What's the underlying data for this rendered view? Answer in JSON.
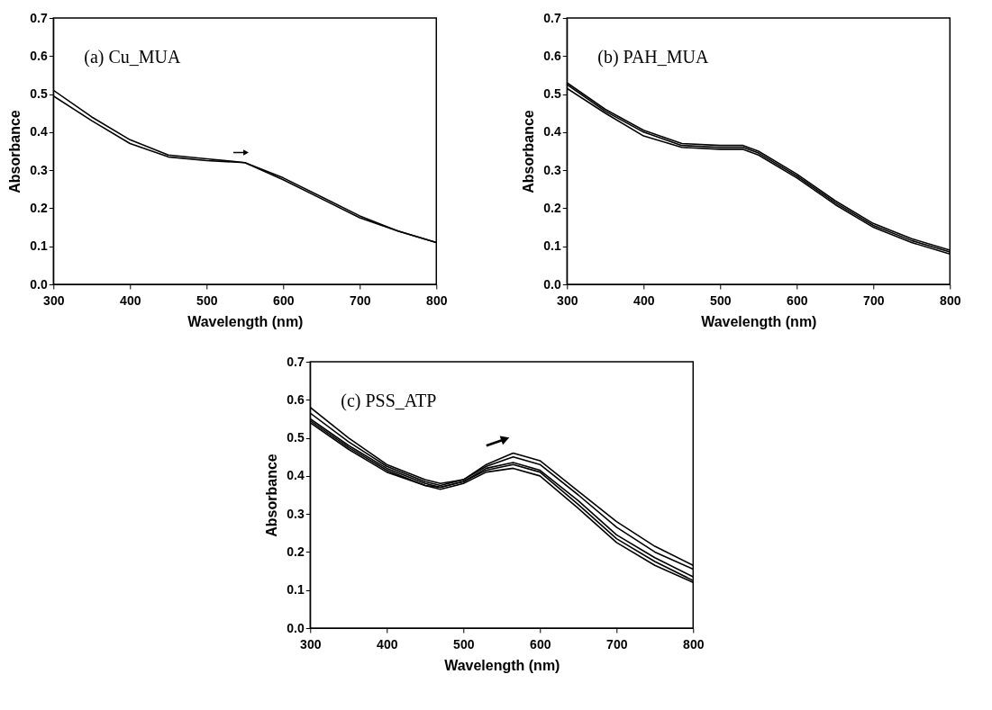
{
  "chart_data": [
    {
      "type": "line",
      "xlabel": "Wavelength (nm)",
      "ylabel": "Absorbance",
      "annotations": [
        "(a) Cu_MUA"
      ],
      "xlim": [
        300,
        800
      ],
      "ylim": [
        0,
        0.7
      ],
      "xticks": [
        300,
        400,
        500,
        600,
        700,
        800
      ],
      "yticks": [
        {
          "value": 0,
          "label": "0.0"
        },
        {
          "value": 0.1,
          "label": "0.1"
        },
        {
          "value": 0.2,
          "label": "0.2"
        },
        {
          "value": 0.3,
          "label": "0.3"
        },
        {
          "value": 0.4,
          "label": "0.4"
        },
        {
          "value": 0.5,
          "label": "0.5"
        },
        {
          "value": 0.6,
          "label": "0.6"
        },
        {
          "value": 0.7,
          "label": "0.7"
        }
      ],
      "x": [
        300,
        350,
        400,
        450,
        500,
        550,
        600,
        650,
        700,
        750,
        800
      ],
      "series": [
        {
          "color": "#000000",
          "values": [
            0.51,
            0.44,
            0.38,
            0.34,
            0.33,
            0.32,
            0.28,
            0.23,
            0.18,
            0.14,
            0.11
          ]
        },
        {
          "color": "#000000",
          "values": [
            0.495,
            0.43,
            0.37,
            0.335,
            0.325,
            0.32,
            0.275,
            0.225,
            0.175,
            0.14,
            0.11
          ]
        }
      ]
    },
    {
      "type": "line",
      "xlabel": "Wavelength (nm)",
      "ylabel": "Absorbance",
      "annotations": [
        "(b) PAH_MUA"
      ],
      "xlim": [
        300,
        800
      ],
      "ylim": [
        0,
        0.7
      ],
      "xticks": [
        300,
        400,
        500,
        600,
        700,
        800
      ],
      "yticks": [
        {
          "value": 0,
          "label": "0.0"
        },
        {
          "value": 0.1,
          "label": "0.1"
        },
        {
          "value": 0.2,
          "label": "0.2"
        },
        {
          "value": 0.3,
          "label": "0.3"
        },
        {
          "value": 0.4,
          "label": "0.4"
        },
        {
          "value": 0.5,
          "label": "0.5"
        },
        {
          "value": 0.6,
          "label": "0.6"
        },
        {
          "value": 0.7,
          "label": "0.7"
        }
      ],
      "x": [
        300,
        350,
        400,
        450,
        500,
        530,
        550,
        600,
        650,
        700,
        750,
        800
      ],
      "series": [
        {
          "color": "#000000",
          "values": [
            0.53,
            0.46,
            0.405,
            0.37,
            0.365,
            0.365,
            0.35,
            0.29,
            0.22,
            0.16,
            0.12,
            0.09
          ]
        },
        {
          "color": "#000000",
          "values": [
            0.525,
            0.455,
            0.4,
            0.365,
            0.36,
            0.36,
            0.345,
            0.285,
            0.215,
            0.155,
            0.115,
            0.085
          ]
        },
        {
          "color": "#000000",
          "values": [
            0.515,
            0.45,
            0.39,
            0.36,
            0.355,
            0.355,
            0.34,
            0.28,
            0.21,
            0.15,
            0.11,
            0.08
          ]
        }
      ]
    },
    {
      "type": "line",
      "xlabel": "Wavelength (nm)",
      "ylabel": "Absorbance",
      "annotations": [
        "(c) PSS_ATP"
      ],
      "xlim": [
        300,
        800
      ],
      "ylim": [
        0,
        0.7
      ],
      "xticks": [
        300,
        400,
        500,
        600,
        700,
        800
      ],
      "yticks": [
        {
          "value": 0,
          "label": "0.0"
        },
        {
          "value": 0.1,
          "label": "0.1"
        },
        {
          "value": 0.2,
          "label": "0.2"
        },
        {
          "value": 0.3,
          "label": "0.3"
        },
        {
          "value": 0.4,
          "label": "0.4"
        },
        {
          "value": 0.5,
          "label": "0.5"
        },
        {
          "value": 0.6,
          "label": "0.6"
        },
        {
          "value": 0.7,
          "label": "0.7"
        }
      ],
      "x": [
        300,
        350,
        400,
        450,
        470,
        500,
        530,
        565,
        600,
        650,
        700,
        750,
        800
      ],
      "series": [
        {
          "color": "#000000",
          "values": [
            0.58,
            0.5,
            0.43,
            0.39,
            0.38,
            0.39,
            0.43,
            0.46,
            0.44,
            0.36,
            0.28,
            0.215,
            0.165
          ]
        },
        {
          "color": "#000000",
          "values": [
            0.565,
            0.49,
            0.425,
            0.385,
            0.375,
            0.39,
            0.425,
            0.45,
            0.43,
            0.35,
            0.265,
            0.2,
            0.155
          ]
        },
        {
          "color": "#000000",
          "values": [
            0.55,
            0.48,
            0.42,
            0.38,
            0.37,
            0.385,
            0.42,
            0.435,
            0.415,
            0.335,
            0.245,
            0.185,
            0.135
          ]
        },
        {
          "color": "#000000",
          "values": [
            0.545,
            0.475,
            0.415,
            0.375,
            0.37,
            0.385,
            0.415,
            0.43,
            0.41,
            0.325,
            0.235,
            0.175,
            0.125
          ]
        },
        {
          "color": "#000000",
          "values": [
            0.54,
            0.47,
            0.41,
            0.375,
            0.365,
            0.38,
            0.41,
            0.42,
            0.4,
            0.315,
            0.225,
            0.165,
            0.12
          ]
        }
      ]
    }
  ]
}
